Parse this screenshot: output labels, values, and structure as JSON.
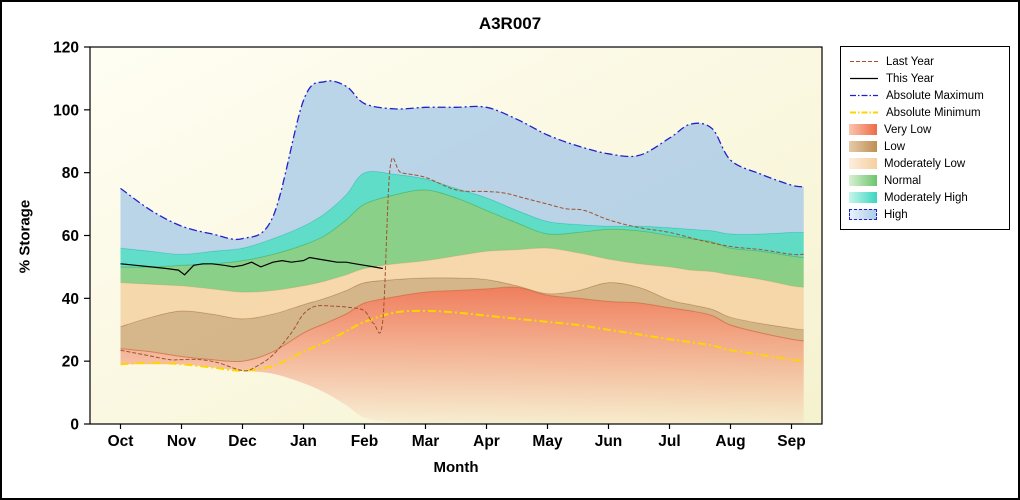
{
  "chart_data": {
    "type": "area",
    "title": "A3R007",
    "xlabel": "Month",
    "ylabel": "% Storage",
    "ylim": [
      0,
      120
    ],
    "yticks": [
      0,
      20,
      40,
      60,
      80,
      100,
      120
    ],
    "x_categories": [
      "Oct",
      "Nov",
      "Dec",
      "Jan",
      "Feb",
      "Mar",
      "Apr",
      "May",
      "Jun",
      "Jul",
      "Aug",
      "Sep"
    ],
    "x_domain": [
      -0.5,
      11.5
    ],
    "plot_bg": [
      "#fffef3",
      "#f5f2cf"
    ],
    "boundary_x": [
      0,
      0.5,
      1,
      1.5,
      2,
      2.5,
      3,
      3.35,
      3.7,
      4,
      4.5,
      5,
      5.5,
      6,
      6.5,
      7,
      7.5,
      8,
      8.5,
      9,
      9.35,
      9.7,
      10,
      10.5,
      11,
      11.2
    ],
    "boundaries": [
      [
        19,
        19,
        19,
        18,
        17,
        16,
        13,
        10,
        6,
        2,
        0.5,
        0,
        0,
        0,
        0,
        0,
        0,
        0,
        0,
        0,
        0,
        0,
        0,
        0,
        0,
        0
      ],
      [
        24,
        23,
        21.5,
        20.5,
        20,
        23,
        29,
        32,
        35,
        38.5,
        40.5,
        42,
        42.5,
        43,
        43.5,
        41,
        40,
        39,
        38.5,
        37,
        36,
        34.5,
        31.5,
        29,
        27,
        26.5
      ],
      [
        31,
        34,
        36,
        35,
        33.5,
        35,
        38,
        40,
        42.5,
        45,
        46,
        46.5,
        46.5,
        46,
        44,
        41.5,
        42.5,
        45,
        43.5,
        39.5,
        38,
        36.5,
        34,
        32,
        30.5,
        30
      ],
      [
        45,
        44.5,
        44,
        43,
        42,
        42.5,
        44,
        45.5,
        47.5,
        49.5,
        51,
        52,
        53.5,
        55,
        55.5,
        56,
        54.5,
        52.5,
        51,
        50,
        49,
        48.5,
        47.5,
        46,
        44,
        43.5
      ],
      [
        50,
        50,
        50.5,
        51,
        52,
        54,
        57,
        60,
        65,
        70,
        73,
        74.5,
        72,
        68,
        64,
        60.5,
        61,
        62,
        61.5,
        60,
        59,
        58,
        56,
        55,
        53.5,
        53
      ],
      [
        56,
        55,
        54,
        55,
        56,
        59,
        63,
        67,
        73,
        80,
        79.5,
        78,
        75,
        72,
        68,
        64.5,
        63.5,
        63,
        63,
        62.5,
        62,
        61.5,
        60.5,
        60.5,
        61,
        61
      ],
      [
        75,
        68,
        63,
        60.5,
        59,
        66,
        103,
        109,
        107.5,
        102,
        100.3,
        100.8,
        100.8,
        100.8,
        97,
        92,
        88.5,
        86,
        85.5,
        91,
        95.5,
        94,
        84,
        79.5,
        76,
        75.5
      ]
    ],
    "bands": [
      {
        "name": "Very Low",
        "fill": "#ee6a47",
        "opacity": 0.88,
        "fade": true,
        "stroke": "#d96a45"
      },
      {
        "name": "Low",
        "fill": "#bf8e55",
        "opacity": 0.62,
        "fade": false,
        "stroke": "#a87c48"
      },
      {
        "name": "Moderately Low",
        "fill": "#f5cf9f",
        "opacity": 0.8,
        "fade": false,
        "stroke": "#e6bd8a"
      },
      {
        "name": "Normal",
        "fill": "#6cc46e",
        "opacity": 0.78,
        "fade": false,
        "stroke": "#4fae52"
      },
      {
        "name": "Moderately High",
        "fill": "#3ad6c0",
        "opacity": 0.8,
        "fade": false,
        "stroke": "#21bfae"
      },
      {
        "name": "High",
        "fill": "#aecde8",
        "opacity": 0.85,
        "fade": false,
        "stroke": null
      }
    ],
    "lines": [
      {
        "name": "Absolute Maximum",
        "color": "#2121cc",
        "width": 1.3,
        "dash": "8 3 2 3",
        "smooth": true,
        "boundary": 6
      },
      {
        "name": "Absolute Minimum",
        "color": "#ffd500",
        "width": 2,
        "dash": "8 3 2 3",
        "smooth": true,
        "x": [
          0,
          0.5,
          1,
          1.5,
          2,
          2.5,
          3,
          3.35,
          3.7,
          4,
          4.5,
          5,
          5.5,
          6,
          6.5,
          7,
          7.5,
          8,
          8.5,
          9,
          9.35,
          9.7,
          10,
          10.5,
          11,
          11.2
        ],
        "y": [
          19,
          19.5,
          19,
          18,
          17,
          18.5,
          23,
          26,
          29.5,
          32.5,
          35.5,
          36,
          35.5,
          34.5,
          33.5,
          32.5,
          31.5,
          30,
          28.5,
          27,
          26,
          25,
          23.5,
          22,
          20.5,
          20
        ]
      },
      {
        "name": "Last Year",
        "color": "#a0522d",
        "width": 1,
        "dash": "4 2",
        "smooth": true,
        "x": [
          0,
          0.4,
          0.8,
          1,
          1.3,
          1.6,
          2,
          2.2,
          2.5,
          2.8,
          3,
          3.2,
          3.5,
          3.8,
          4,
          4.15,
          4.3,
          4.42,
          4.6,
          5,
          5.5,
          6,
          6.3,
          6.6,
          7,
          7.3,
          7.6,
          8,
          8.5,
          9,
          9.5,
          10,
          10.5,
          11,
          11.2
        ],
        "y": [
          23.5,
          22,
          20.5,
          20.5,
          20.5,
          19.5,
          17,
          18,
          22,
          29,
          35,
          37.5,
          37.5,
          37,
          36,
          32,
          33,
          81.5,
          80,
          78.5,
          74.5,
          74,
          73.5,
          72,
          70,
          68.5,
          68,
          65,
          62.5,
          61,
          58.5,
          56.5,
          55.5,
          54,
          54
        ]
      },
      {
        "name": "This Year",
        "color": "#000000",
        "width": 1.2,
        "dash": null,
        "smooth": false,
        "x": [
          0,
          0.25,
          0.5,
          0.75,
          0.95,
          1.05,
          1.2,
          1.35,
          1.5,
          1.7,
          1.85,
          2,
          2.15,
          2.3,
          2.5,
          2.65,
          2.8,
          3,
          3.1,
          3.25,
          3.4,
          3.55,
          3.7,
          3.85,
          4,
          4.15,
          4.3
        ],
        "y": [
          51,
          50.5,
          50,
          49.5,
          49,
          47.5,
          50.5,
          51,
          51,
          50.5,
          50,
          50.5,
          51.5,
          50,
          51.5,
          52,
          51.5,
          52,
          53,
          52.5,
          52,
          51.5,
          51.5,
          51,
          50.5,
          50,
          49.5
        ]
      }
    ]
  },
  "legend": {
    "items": [
      {
        "label": "Last Year",
        "swatch": "line",
        "color": "#a0522d",
        "dash": "4 2",
        "width": 1
      },
      {
        "label": "This Year",
        "swatch": "line",
        "color": "#000000",
        "dash": null,
        "width": 1.3
      },
      {
        "label": "Absolute Maximum",
        "swatch": "line",
        "color": "#2121cc",
        "dash": "6 2 1.5 2",
        "width": 1.3
      },
      {
        "label": "Absolute Minimum",
        "swatch": "line",
        "color": "#ffd500",
        "dash": "6 2 1.5 2",
        "width": 2
      },
      {
        "label": "Very Low",
        "swatch": "band",
        "from": "#fac5ae",
        "to": "#ee6a47"
      },
      {
        "label": "Low",
        "swatch": "band",
        "from": "#e5cba8",
        "to": "#bf8e55"
      },
      {
        "label": "Moderately Low",
        "swatch": "band",
        "from": "#fdeedd",
        "to": "#f5cf9f"
      },
      {
        "label": "Normal",
        "swatch": "band",
        "from": "#d8f0d2",
        "to": "#6cc46e"
      },
      {
        "label": "Moderately High",
        "swatch": "band",
        "from": "#c8f5ec",
        "to": "#3ad6c0"
      },
      {
        "label": "High",
        "swatch": "band",
        "from": "#e8f1fa",
        "to": "#aecde8",
        "border": "#2121cc"
      }
    ]
  }
}
